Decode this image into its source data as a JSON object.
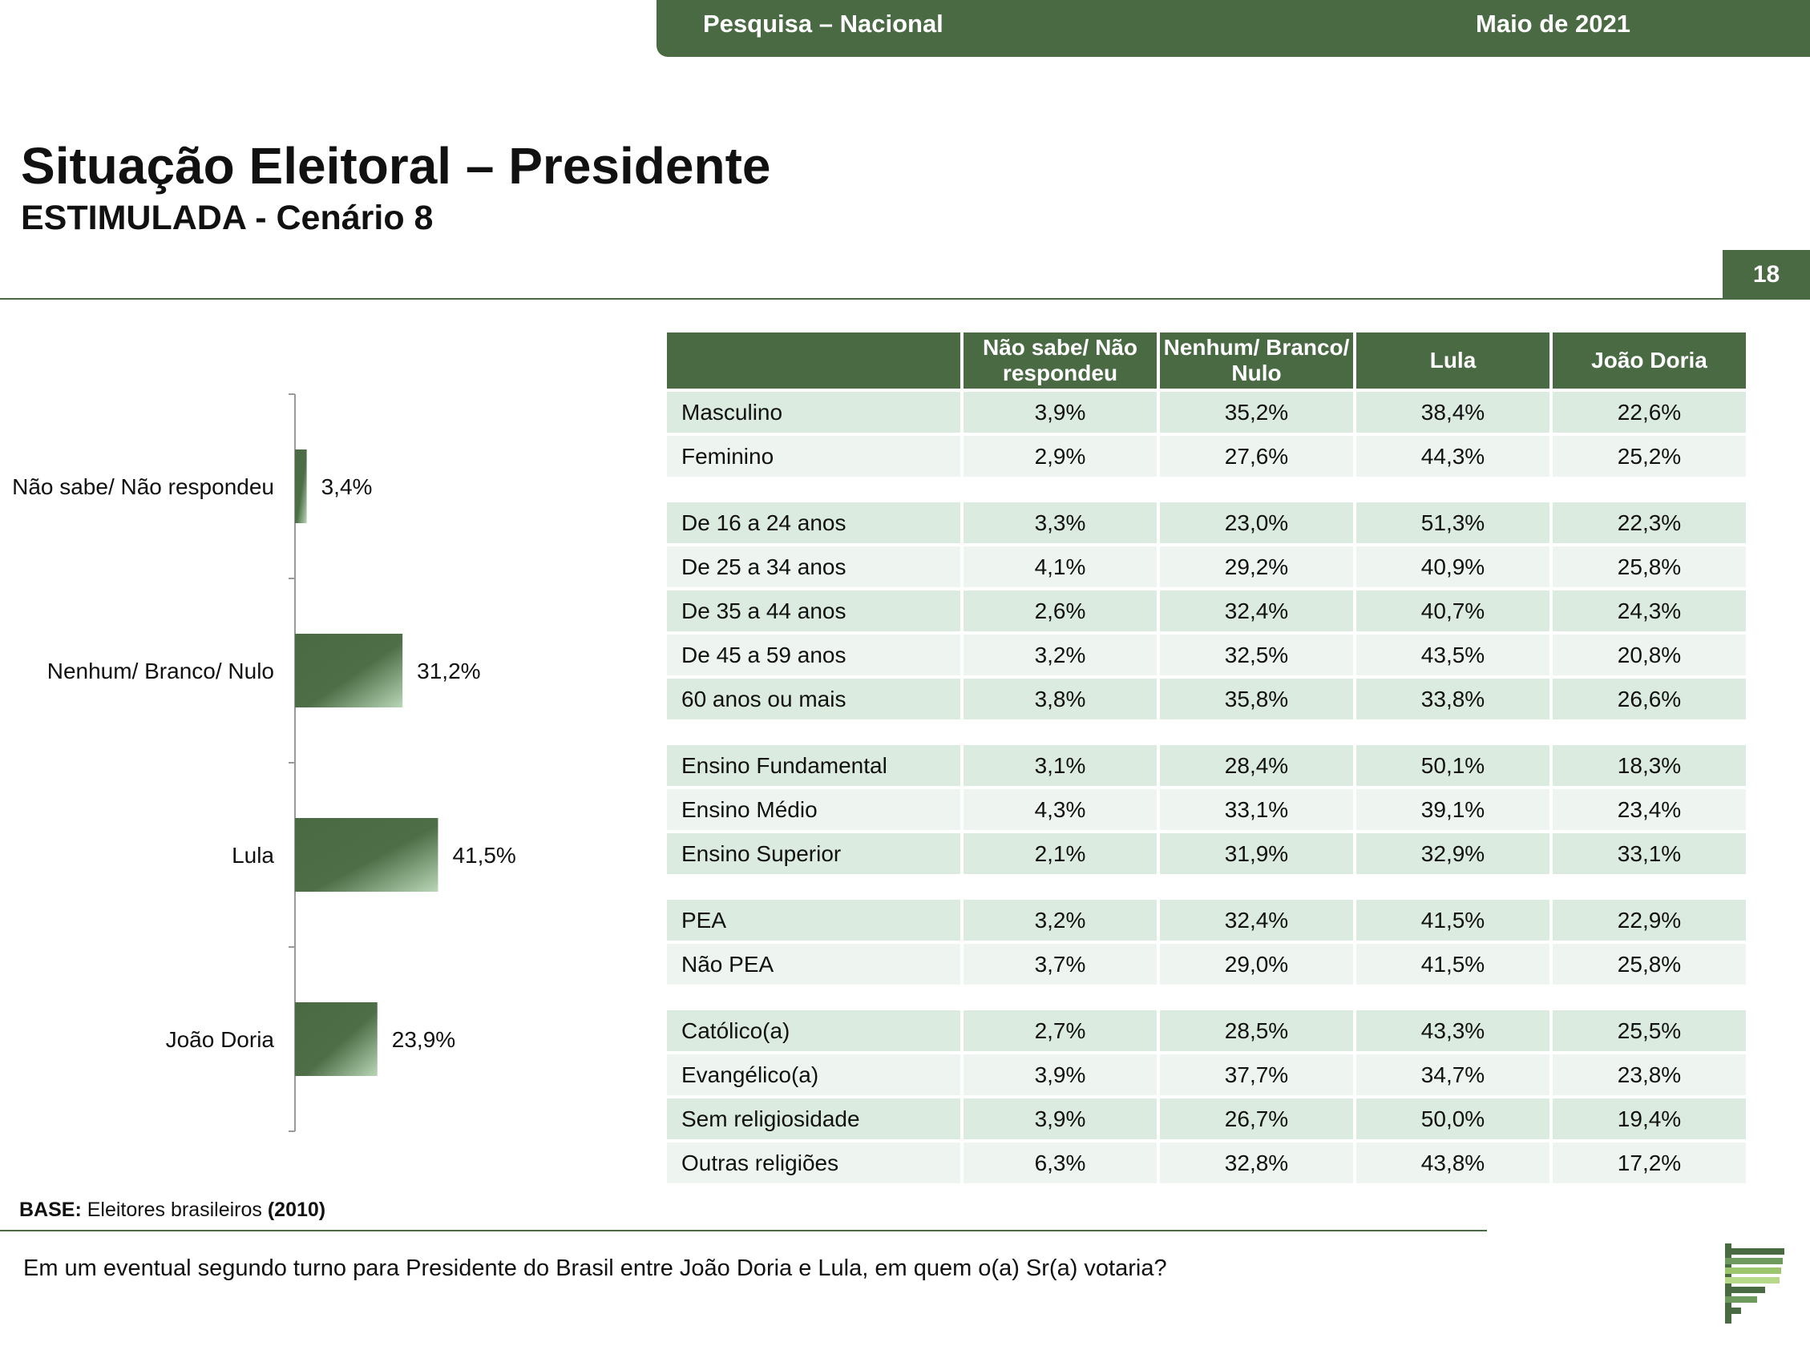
{
  "header": {
    "survey": "Pesquisa – Nacional",
    "date": "Maio de 2021"
  },
  "title": "Situação Eleitoral – Presidente",
  "subtitle": "ESTIMULADA - Cenário 8",
  "page_number": "18",
  "chart_data": [
    {
      "type": "bar",
      "orientation": "horizontal",
      "categories": [
        "Não sabe/ Não respondeu",
        "Nenhum/ Branco/ Nulo",
        "Lula",
        "João Doria"
      ],
      "values": [
        3.4,
        31.2,
        41.5,
        23.9
      ],
      "value_labels": [
        "3,4%",
        "31,2%",
        "41,5%",
        "23,9%"
      ],
      "xlim": [
        0,
        100
      ],
      "bar_color": "#4a6a44"
    },
    {
      "type": "table",
      "columns": [
        "",
        "Não sabe/ Não respondeu",
        "Nenhum/ Branco/ Nulo",
        "Lula",
        "João Doria"
      ],
      "groups": [
        [
          [
            "Masculino",
            "3,9%",
            "35,2%",
            "38,4%",
            "22,6%"
          ],
          [
            "Feminino",
            "2,9%",
            "27,6%",
            "44,3%",
            "25,2%"
          ]
        ],
        [
          [
            "De 16 a 24 anos",
            "3,3%",
            "23,0%",
            "51,3%",
            "22,3%"
          ],
          [
            "De 25 a 34 anos",
            "4,1%",
            "29,2%",
            "40,9%",
            "25,8%"
          ],
          [
            "De 35 a 44 anos",
            "2,6%",
            "32,4%",
            "40,7%",
            "24,3%"
          ],
          [
            "De 45 a 59 anos",
            "3,2%",
            "32,5%",
            "43,5%",
            "20,8%"
          ],
          [
            "60 anos ou mais",
            "3,8%",
            "35,8%",
            "33,8%",
            "26,6%"
          ]
        ],
        [
          [
            "Ensino Fundamental",
            "3,1%",
            "28,4%",
            "50,1%",
            "18,3%"
          ],
          [
            "Ensino Médio",
            "4,3%",
            "33,1%",
            "39,1%",
            "23,4%"
          ],
          [
            "Ensino Superior",
            "2,1%",
            "31,9%",
            "32,9%",
            "33,1%"
          ]
        ],
        [
          [
            "PEA",
            "3,2%",
            "32,4%",
            "41,5%",
            "22,9%"
          ],
          [
            "Não PEA",
            "3,7%",
            "29,0%",
            "41,5%",
            "25,8%"
          ]
        ],
        [
          [
            "Católico(a)",
            "2,7%",
            "28,5%",
            "43,3%",
            "25,5%"
          ],
          [
            "Evangélico(a)",
            "3,9%",
            "37,7%",
            "34,7%",
            "23,8%"
          ],
          [
            "Sem religiosidade",
            "3,9%",
            "26,7%",
            "50,0%",
            "19,4%"
          ],
          [
            "Outras religiões",
            "6,3%",
            "32,8%",
            "43,8%",
            "17,2%"
          ]
        ]
      ]
    }
  ],
  "base": {
    "label": "BASE:",
    "text": "Eleitores brasileiros",
    "year": "(2010)"
  },
  "question": "Em um eventual segundo turno para Presidente do Brasil entre João Doria e Lula, em quem o(a) Sr(a) votaria?",
  "colors": {
    "accent": "#4a6a44",
    "row_dark": "#dcebdf",
    "row_light": "#eef5f0"
  },
  "logo": "stacked-green-bars-logo"
}
